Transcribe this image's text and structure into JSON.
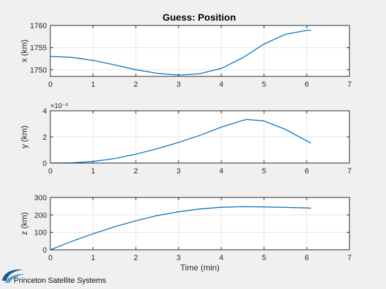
{
  "figure": {
    "background": "#f0f0f0",
    "axes_background": "#ffffff",
    "line_color": "#0072bd",
    "grid": true
  },
  "chart_data": [
    {
      "type": "line",
      "title": "Guess: Position",
      "xlabel": "",
      "ylabel": "x (km)",
      "xlim": [
        0,
        7
      ],
      "ylim": [
        1748.5,
        1760
      ],
      "xticks": [
        "0",
        "1",
        "2",
        "3",
        "4",
        "5",
        "6",
        "7"
      ],
      "yticks": [
        {
          "value": 1750,
          "label": "1750"
        },
        {
          "value": 1755,
          "label": "1755"
        },
        {
          "value": 1760,
          "label": "1760"
        }
      ],
      "exponent": "",
      "series": [
        {
          "x": [
            0,
            0.5,
            1,
            1.5,
            2,
            2.5,
            3,
            3.5,
            4,
            4.5,
            5,
            5.5,
            6,
            6.1
          ],
          "values": [
            1753.0,
            1752.8,
            1752.1,
            1751.1,
            1750.0,
            1749.2,
            1748.8,
            1749.1,
            1750.3,
            1752.7,
            1755.8,
            1758.0,
            1758.9,
            1758.9
          ]
        }
      ]
    },
    {
      "type": "line",
      "title": "",
      "xlabel": "",
      "ylabel": "y (km)",
      "xlim": [
        0,
        7
      ],
      "ylim": [
        0,
        0.004
      ],
      "xticks": [
        "0",
        "1",
        "2",
        "3",
        "4",
        "5",
        "6",
        "7"
      ],
      "yticks": [
        {
          "value": 0,
          "label": "0"
        },
        {
          "value": 0.002,
          "label": "2"
        },
        {
          "value": 0.004,
          "label": "4"
        }
      ],
      "exponent": "×10⁻³",
      "series": [
        {
          "x": [
            0,
            0.5,
            1,
            1.5,
            2,
            2.5,
            3,
            3.5,
            4,
            4.5,
            4.6,
            5,
            5.5,
            6,
            6.1
          ],
          "values": [
            0,
            2e-05,
            0.00012,
            0.00034,
            0.00068,
            0.0011,
            0.00158,
            0.00212,
            0.00275,
            0.00326,
            0.00334,
            0.00322,
            0.00258,
            0.0017,
            0.00152
          ]
        }
      ]
    },
    {
      "type": "line",
      "title": "",
      "xlabel": "Time (min)",
      "ylabel": "z (km)",
      "xlim": [
        0,
        7
      ],
      "ylim": [
        0,
        300
      ],
      "xticks": [
        "0",
        "1",
        "2",
        "3",
        "4",
        "5",
        "6",
        "7"
      ],
      "yticks": [
        {
          "value": 0,
          "label": "0"
        },
        {
          "value": 100,
          "label": "100"
        },
        {
          "value": 200,
          "label": "200"
        },
        {
          "value": 300,
          "label": "300"
        }
      ],
      "exponent": "",
      "series": [
        {
          "x": [
            0,
            0.5,
            1,
            1.5,
            2,
            2.5,
            3,
            3.5,
            4,
            4.5,
            5,
            5.5,
            6,
            6.1
          ],
          "values": [
            0,
            48,
            92,
            132,
            166,
            196,
            218,
            234,
            244,
            247,
            246,
            243,
            240,
            239
          ]
        }
      ]
    }
  ],
  "logo": {
    "text": "Princeton Satellite Systems",
    "colors": [
      "#1c5a8c",
      "#5aa0d0"
    ]
  }
}
